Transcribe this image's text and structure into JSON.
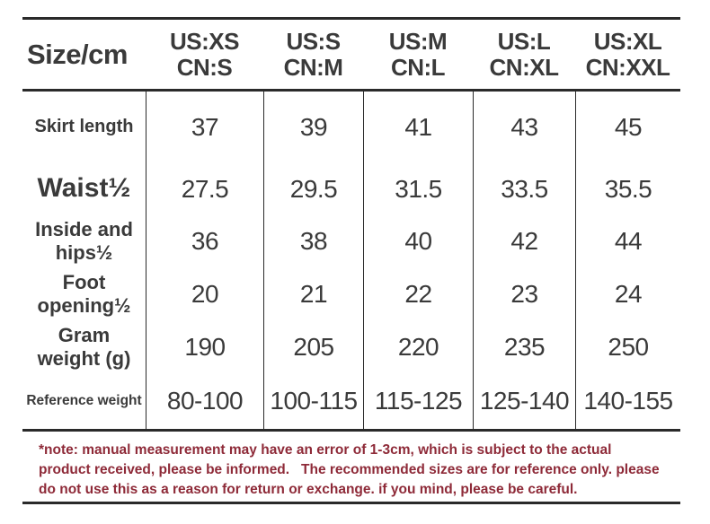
{
  "colors": {
    "line": "#2a2a2a",
    "text": "#3a3a3a",
    "note": "#8e2a38",
    "background": "#ffffff"
  },
  "table": {
    "corner_label": "Size/cm",
    "columns": [
      {
        "us": "US:XS",
        "cn": "CN:S"
      },
      {
        "us": "US:S",
        "cn": "CN:M"
      },
      {
        "us": "US:M",
        "cn": "CN:L"
      },
      {
        "us": "US:L",
        "cn": "CN:XL"
      },
      {
        "us": "US:XL",
        "cn": "CN:XXL"
      }
    ],
    "rows": [
      {
        "label": "Skirt length",
        "values": [
          "37",
          "39",
          "41",
          "43",
          "45"
        ]
      },
      {
        "label": "Waist½",
        "values": [
          "27.5",
          "29.5",
          "31.5",
          "33.5",
          "35.5"
        ]
      },
      {
        "label": "Inside and hips½",
        "values": [
          "36",
          "38",
          "40",
          "42",
          "44"
        ]
      },
      {
        "label": "Foot opening½",
        "values": [
          "20",
          "21",
          "22",
          "23",
          "24"
        ]
      },
      {
        "label": "Gram weight (g)",
        "values": [
          "190",
          "205",
          "220",
          "235",
          "250"
        ]
      },
      {
        "label": "Reference weight",
        "values": [
          "80-100",
          "100-115",
          "115-125",
          "125-140",
          "140-155"
        ]
      }
    ]
  },
  "note": {
    "lines": [
      "*note: manual measurement may have an error of 1-3cm, which is subject to the actual",
      "product received, please be informed.   The recommended sizes are for reference only. please",
      "do not use this as a reason for return or exchange. if you mind, please be careful."
    ]
  },
  "chart_data": {
    "type": "table",
    "title": "Size/cm",
    "categories": [
      "US:XS / CN:S",
      "US:S / CN:M",
      "US:M / CN:L",
      "US:L / CN:XL",
      "US:XL / CN:XXL"
    ],
    "series": [
      {
        "name": "Skirt length",
        "values": [
          37,
          39,
          41,
          43,
          45
        ]
      },
      {
        "name": "Waist½",
        "values": [
          27.5,
          29.5,
          31.5,
          33.5,
          35.5
        ]
      },
      {
        "name": "Inside and hips½",
        "values": [
          36,
          38,
          40,
          42,
          44
        ]
      },
      {
        "name": "Foot opening½",
        "values": [
          20,
          21,
          22,
          23,
          24
        ]
      },
      {
        "name": "Gram weight (g)",
        "values": [
          190,
          205,
          220,
          235,
          250
        ]
      },
      {
        "name": "Reference weight",
        "values": [
          "80-100",
          "100-115",
          "115-125",
          "125-140",
          "140-155"
        ]
      }
    ],
    "note": "*note: manual measurement may have an error of 1-3cm, which is subject to the actual product received, please be informed. The recommended sizes are for reference only. please do not use this as a reason for return or exchange. if you mind, please be careful."
  }
}
